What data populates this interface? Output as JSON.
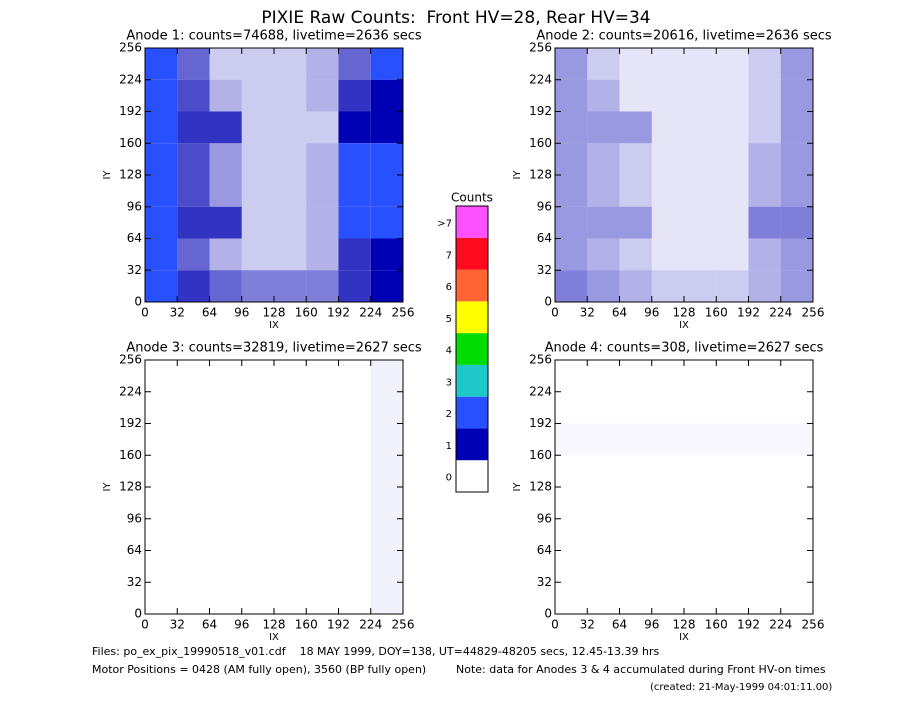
{
  "title": "PIXIE Raw Counts:  Front HV=28, Rear HV=34",
  "colorbar": {
    "title": "Counts",
    "labels": [
      "0",
      "1",
      "2",
      "3",
      "4",
      "5",
      "6",
      "7",
      ">7"
    ],
    "colors": [
      "#ffffff",
      "#0000b4",
      "#2850ff",
      "#1ec8c8",
      "#00dc00",
      "#ffff00",
      "#ff6432",
      "#ff0a1e",
      "#ff50ff"
    ]
  },
  "footer": [
    "Files: po_ex_pix_19990518_v01.cdf    18 MAY 1999, DOY=138, UT=44829-48205 secs, 12.45-13.39 hrs",
    "Motor Positions = 0428 (AM fully open), 3560 (BP fully open)",
    "Note: data for Anodes 3 & 4 accumulated during Front HV-on times",
    "(created: 21-May-1999 04:01:11.00)"
  ],
  "chart_data": [
    {
      "type": "heatmap",
      "title": "Anode 1: counts=74688, livetime=2636 secs",
      "xlabel": "IX",
      "ylabel": "IY",
      "xlim": [
        0,
        256
      ],
      "ylim": [
        0,
        256
      ],
      "xticks": [
        0,
        32,
        64,
        96,
        128,
        160,
        192,
        224,
        256
      ],
      "yticks": [
        0,
        32,
        64,
        96,
        128,
        160,
        192,
        224,
        256
      ],
      "z": [
        [
          1.5,
          0.6,
          0.2,
          0.2,
          0.2,
          0.3,
          0.6,
          1.2
        ],
        [
          1.5,
          0.7,
          0.3,
          0.2,
          0.2,
          0.3,
          0.8,
          1.0
        ],
        [
          2,
          0.8,
          0.8,
          0.2,
          0.2,
          0.2,
          1.0,
          1.0
        ],
        [
          2,
          0.7,
          0.4,
          0.2,
          0.2,
          0.3,
          1.5,
          1.5
        ],
        [
          2,
          0.7,
          0.4,
          0.2,
          0.2,
          0.3,
          1.2,
          1.2
        ],
        [
          2,
          0.8,
          0.8,
          0.2,
          0.2,
          0.3,
          1.5,
          1.5
        ],
        [
          1.5,
          0.6,
          0.3,
          0.2,
          0.2,
          0.3,
          0.8,
          1.0
        ],
        [
          1.5,
          0.8,
          0.6,
          0.5,
          0.5,
          0.5,
          0.8,
          1.0
        ]
      ]
    },
    {
      "type": "heatmap",
      "title": "Anode 2: counts=20616, livetime=2636 secs",
      "xlabel": "IX",
      "ylabel": "IY",
      "xlim": [
        0,
        256
      ],
      "ylim": [
        0,
        256
      ],
      "xticks": [
        0,
        32,
        64,
        96,
        128,
        160,
        192,
        224,
        256
      ],
      "yticks": [
        0,
        32,
        64,
        96,
        128,
        160,
        192,
        224,
        256
      ],
      "z": [
        [
          0.4,
          0.2,
          0.1,
          0.1,
          0.1,
          0.1,
          0.2,
          0.4
        ],
        [
          0.4,
          0.3,
          0.1,
          0.1,
          0.1,
          0.1,
          0.2,
          0.4
        ],
        [
          0.4,
          0.4,
          0.4,
          0.1,
          0.1,
          0.1,
          0.2,
          0.4
        ],
        [
          0.4,
          0.3,
          0.2,
          0.1,
          0.1,
          0.1,
          0.3,
          0.4
        ],
        [
          0.4,
          0.3,
          0.2,
          0.1,
          0.1,
          0.1,
          0.3,
          0.4
        ],
        [
          0.4,
          0.4,
          0.4,
          0.1,
          0.1,
          0.1,
          0.5,
          0.5
        ],
        [
          0.4,
          0.3,
          0.2,
          0.1,
          0.1,
          0.1,
          0.3,
          0.4
        ],
        [
          0.5,
          0.4,
          0.3,
          0.2,
          0.2,
          0.2,
          0.3,
          0.4
        ]
      ]
    },
    {
      "type": "heatmap",
      "title": "Anode 3: counts=32819, livetime=2627 secs",
      "xlabel": "IX",
      "ylabel": "IY",
      "xlim": [
        0,
        256
      ],
      "ylim": [
        0,
        256
      ],
      "xticks": [
        0,
        32,
        64,
        96,
        128,
        160,
        192,
        224,
        256
      ],
      "yticks": [
        0,
        32,
        64,
        96,
        128,
        160,
        192,
        224,
        256
      ],
      "z": [
        [
          0,
          0,
          0,
          0,
          0,
          0,
          0,
          0.05
        ],
        [
          0,
          0,
          0,
          0,
          0,
          0,
          0,
          0.05
        ],
        [
          0,
          0,
          0,
          0,
          0,
          0,
          0,
          0.05
        ],
        [
          0,
          0,
          0,
          0,
          0,
          0,
          0,
          0.05
        ],
        [
          0,
          0,
          0,
          0,
          0,
          0,
          0,
          0.05
        ],
        [
          0,
          0,
          0,
          0,
          0,
          0,
          0,
          0.05
        ],
        [
          0,
          0,
          0,
          0,
          0,
          0,
          0,
          0.05
        ],
        [
          0,
          0,
          0,
          0,
          0,
          0,
          0,
          0.05
        ]
      ]
    },
    {
      "type": "heatmap",
      "title": "Anode 4: counts=308, livetime=2627 secs",
      "xlabel": "IX",
      "ylabel": "IY",
      "xlim": [
        0,
        256
      ],
      "ylim": [
        0,
        256
      ],
      "xticks": [
        0,
        32,
        64,
        96,
        128,
        160,
        192,
        224,
        256
      ],
      "yticks": [
        0,
        32,
        64,
        96,
        128,
        160,
        192,
        224,
        256
      ],
      "z": [
        [
          0,
          0,
          0,
          0,
          0,
          0,
          0,
          0
        ],
        [
          0,
          0,
          0,
          0,
          0,
          0,
          0,
          0
        ],
        [
          0.03,
          0.03,
          0.03,
          0.03,
          0.03,
          0.03,
          0.03,
          0.03
        ],
        [
          0,
          0,
          0,
          0,
          0,
          0,
          0,
          0
        ],
        [
          0,
          0,
          0,
          0,
          0,
          0,
          0,
          0
        ],
        [
          0,
          0,
          0,
          0,
          0,
          0,
          0,
          0
        ],
        [
          0,
          0,
          0,
          0,
          0,
          0,
          0,
          0
        ],
        [
          0,
          0,
          0,
          0,
          0,
          0,
          0,
          0
        ]
      ]
    }
  ]
}
